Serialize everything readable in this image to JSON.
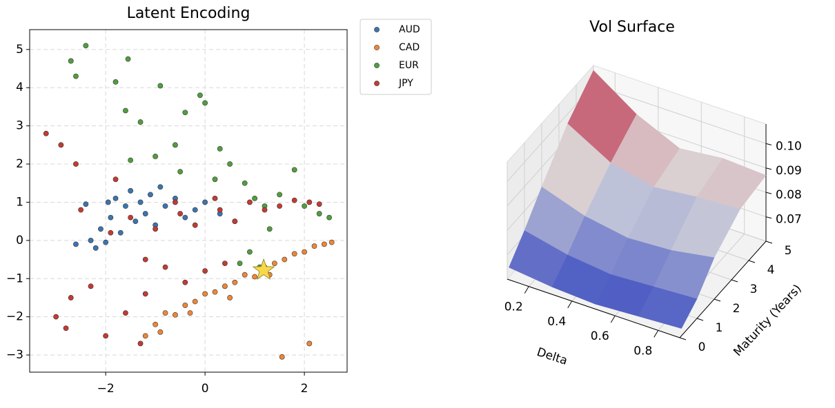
{
  "chart_data": [
    {
      "type": "scatter",
      "title": "Latent Encoding",
      "xlim": [
        -3.53,
        2.86
      ],
      "ylim": [
        -3.45,
        5.52
      ],
      "xticks": [
        {
          "value": -2,
          "label": "−2"
        },
        0,
        2
      ],
      "yticks": [
        {
          "value": -3,
          "label": "−3"
        },
        {
          "value": -2,
          "label": "−2"
        },
        {
          "value": -1,
          "label": "−1"
        },
        0,
        1,
        2,
        3,
        4,
        5
      ],
      "grid": true,
      "legend": "outside upper right",
      "series": [
        {
          "name": "AUD",
          "color": "#3b75af",
          "x": [
            -2.6,
            -2.4,
            -2.2,
            -2.1,
            -2.0,
            -1.9,
            -1.8,
            -1.7,
            -1.6,
            -1.5,
            -1.4,
            -1.3,
            -1.2,
            -1.1,
            -1.0,
            -0.9,
            -0.8,
            -0.6,
            -0.4,
            -0.2,
            0.0,
            0.3,
            0.6,
            -2.3,
            -1.95
          ],
          "values": [
            -0.1,
            0.95,
            -0.2,
            0.3,
            -0.05,
            0.6,
            1.1,
            0.2,
            0.9,
            1.3,
            0.5,
            1.0,
            0.7,
            1.2,
            0.4,
            1.4,
            0.9,
            1.1,
            0.6,
            0.8,
            1.0,
            0.7,
            0.5,
            0.0,
            1.0
          ]
        },
        {
          "name": "CAD",
          "color": "#ef8636",
          "x": [
            -1.2,
            -1.0,
            -0.8,
            -0.6,
            -0.4,
            -0.2,
            0.0,
            0.2,
            0.4,
            0.6,
            0.8,
            1.0,
            1.2,
            1.4,
            1.6,
            1.8,
            2.0,
            2.2,
            2.4,
            2.55,
            -0.9,
            -0.3,
            0.5,
            1.3,
            2.1,
            1.55
          ],
          "values": [
            -2.5,
            -2.2,
            -1.9,
            -1.95,
            -1.7,
            -1.6,
            -1.4,
            -1.35,
            -1.2,
            -1.1,
            -0.9,
            -0.95,
            -0.7,
            -0.6,
            -0.5,
            -0.35,
            -0.3,
            -0.15,
            -0.1,
            -0.05,
            -2.4,
            -1.9,
            -1.5,
            -0.9,
            -2.7,
            -3.05
          ]
        },
        {
          "name": "EUR",
          "color": "#519e3e",
          "x": [
            -2.7,
            -2.6,
            -2.4,
            -1.8,
            -1.6,
            -1.55,
            -1.3,
            -0.9,
            -0.4,
            -0.1,
            0.0,
            0.3,
            0.5,
            0.8,
            1.0,
            1.2,
            1.5,
            1.8,
            2.0,
            2.3,
            2.5,
            -1.5,
            -1.0,
            -0.5,
            0.2,
            0.9,
            0.7,
            1.1,
            -0.6,
            1.3
          ],
          "values": [
            4.7,
            4.3,
            5.1,
            4.15,
            3.4,
            4.75,
            3.1,
            4.05,
            3.35,
            3.8,
            3.6,
            2.4,
            2.0,
            1.5,
            1.1,
            0.9,
            1.2,
            1.85,
            0.9,
            0.7,
            0.6,
            2.1,
            2.2,
            1.8,
            1.6,
            -0.3,
            -0.6,
            -0.7,
            2.5,
            0.3
          ]
        },
        {
          "name": "JPY",
          "color": "#c53a32",
          "x": [
            -3.2,
            -2.9,
            -2.8,
            -2.7,
            -2.5,
            -2.3,
            -2.0,
            -1.8,
            -1.6,
            -1.5,
            -1.3,
            -1.2,
            -1.0,
            -0.8,
            -0.6,
            -0.4,
            -0.2,
            0.0,
            0.2,
            0.4,
            0.6,
            0.9,
            1.2,
            1.5,
            1.8,
            2.1,
            2.3,
            -3.0,
            -2.6,
            -1.9,
            -1.2,
            -0.5,
            0.3
          ],
          "values": [
            2.8,
            2.5,
            -2.3,
            -1.5,
            0.8,
            -1.2,
            -2.5,
            1.6,
            -1.9,
            0.6,
            -2.7,
            -0.5,
            0.3,
            -0.7,
            1.0,
            -1.1,
            0.4,
            -0.8,
            1.1,
            -0.6,
            0.5,
            1.0,
            0.8,
            0.9,
            1.05,
            1.0,
            0.95,
            -2.0,
            2.0,
            0.2,
            -1.4,
            0.7,
            0.8
          ]
        }
      ],
      "highlight": {
        "x": 1.18,
        "y": -0.78,
        "color": "#f7d84a"
      }
    },
    {
      "type": "surface",
      "title": "Vol Surface",
      "xlabel": "Delta",
      "ylabel": "Maturity (Years)",
      "x": [
        0.1,
        0.3,
        0.5,
        0.7,
        0.9
      ],
      "y": [
        0.1,
        1,
        2,
        3.5,
        5
      ],
      "z": [
        [
          0.064,
          0.062,
          0.061,
          0.062,
          0.063
        ],
        [
          0.072,
          0.068,
          0.066,
          0.067,
          0.068
        ],
        [
          0.082,
          0.076,
          0.073,
          0.074,
          0.077
        ],
        [
          0.096,
          0.086,
          0.082,
          0.084,
          0.085
        ],
        [
          0.106,
          0.094,
          0.086,
          0.088,
          0.087
        ]
      ],
      "xlim": [
        0.1,
        0.9
      ],
      "ylim": [
        0,
        5
      ],
      "zlim": [
        0.06,
        0.108
      ],
      "xticks": [
        0.2,
        0.4,
        0.6,
        0.8
      ],
      "yticks": [
        0,
        1,
        2,
        3,
        4,
        5
      ],
      "zticks": [
        0.07,
        0.08,
        0.09,
        {
          "value": 0.1,
          "label": "0.10"
        }
      ],
      "colormap": "coolwarm"
    }
  ]
}
